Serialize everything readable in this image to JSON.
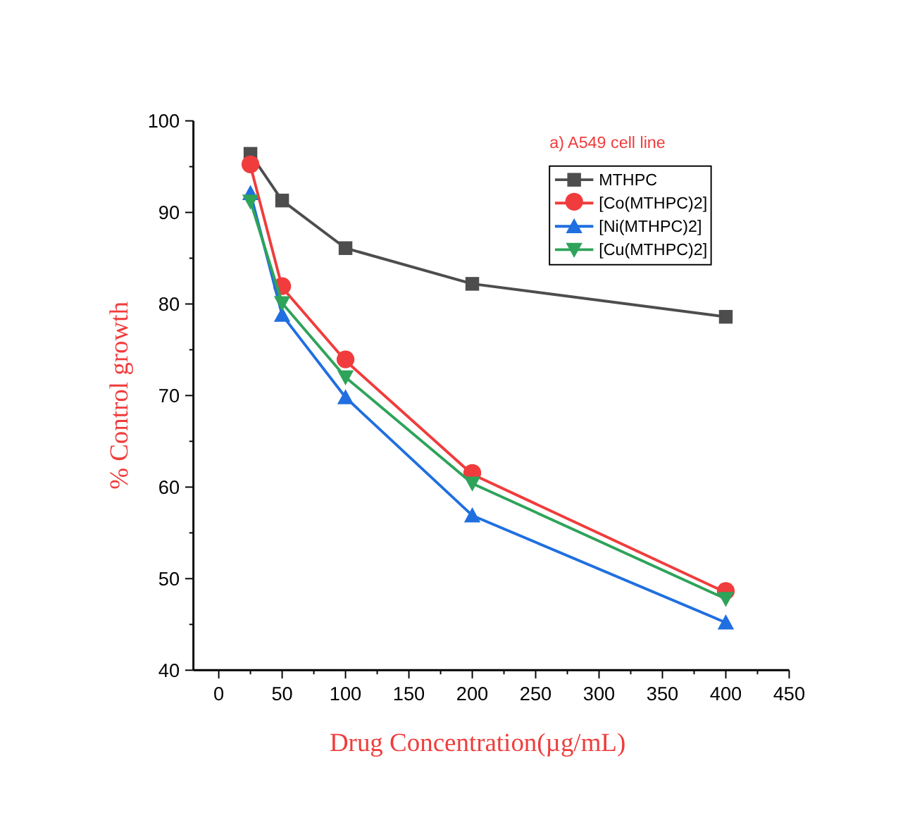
{
  "chart_data": {
    "type": "line",
    "title": "a) A549 cell line",
    "xlabel": "Drug Concentration(µg/mL)",
    "ylabel": "% Control growth",
    "x": [
      25,
      50,
      100,
      200,
      400
    ],
    "series": [
      {
        "name": "MTHPC",
        "color": "#4d4d4d",
        "marker": "square",
        "values": [
          96.4,
          91.3,
          86.1,
          82.2,
          78.6
        ]
      },
      {
        "name": "[Co(MTHPC)2]",
        "color": "#f03c3c",
        "marker": "circle",
        "values": [
          95.1,
          81.8,
          73.8,
          61.4,
          48.5
        ]
      },
      {
        "name": "[Ni(MTHPC)2]",
        "color": "#1f6fe0",
        "marker": "triangle",
        "values": [
          92.1,
          78.8,
          69.8,
          56.9,
          45.2
        ]
      },
      {
        "name": "[Cu(MTHPC)2]",
        "color": "#2ea35a",
        "marker": "triangle-down",
        "values": [
          91.2,
          80.1,
          72.0,
          60.4,
          47.8
        ]
      }
    ],
    "xlim": [
      -20,
      450
    ],
    "xticks": [
      0,
      50,
      100,
      150,
      200,
      250,
      300,
      350,
      400,
      450
    ],
    "ylim": [
      40,
      100
    ],
    "yticks": [
      40,
      50,
      60,
      70,
      80,
      90,
      100
    ],
    "grid": false,
    "legend": "top right"
  }
}
